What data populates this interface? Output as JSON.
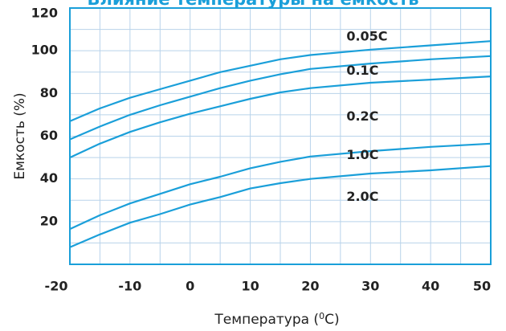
{
  "chart_data": {
    "type": "line",
    "title": "Влияние температуры на емкость",
    "xlabel": "Температура (",
    "xlabel_sup": "0",
    "xlabel_end": "C)",
    "ylabel": "Емкость (%)",
    "xlim": [
      -20,
      50
    ],
    "ylim": [
      0,
      120
    ],
    "x_ticks": [
      -20,
      -10,
      0,
      10,
      20,
      30,
      40,
      50
    ],
    "x_tick_labels": [
      "-20",
      "-10",
      "0",
      "10",
      "20",
      "30",
      "40",
      "50"
    ],
    "y_ticks": [
      20,
      40,
      60,
      80,
      100,
      120
    ],
    "y_tick_labels": [
      "20",
      "40",
      "60",
      "80",
      "100",
      "120"
    ],
    "grid": true,
    "line_color": "#1a9fd9",
    "grid_color": "#b8d3ea",
    "frame_color": "#1a9fd9",
    "series": [
      {
        "name": "0.05C",
        "x": [
          -20,
          -15,
          -10,
          -5,
          0,
          5,
          10,
          15,
          20,
          30,
          40,
          50
        ],
        "y": [
          67,
          73,
          78,
          82,
          86,
          90,
          93,
          96,
          98,
          100.5,
          102.5,
          104.5
        ],
        "label_x": 26,
        "label_y": 106.5
      },
      {
        "name": "0.1C",
        "x": [
          -20,
          -15,
          -10,
          -5,
          0,
          5,
          10,
          15,
          20,
          30,
          40,
          50
        ],
        "y": [
          58.5,
          64.5,
          70,
          74.5,
          78.5,
          82.5,
          86,
          89,
          91.5,
          94,
          96,
          97.5
        ],
        "label_x": 26,
        "label_y": 90.5
      },
      {
        "name": "0.2C",
        "x": [
          -20,
          -15,
          -10,
          -5,
          0,
          5,
          10,
          15,
          20,
          30,
          40,
          50
        ],
        "y": [
          50,
          56.5,
          62,
          66.5,
          70.5,
          74,
          77.5,
          80.5,
          82.5,
          85,
          86.5,
          88
        ],
        "label_x": 26,
        "label_y": 69
      },
      {
        "name": "1.0C",
        "x": [
          -20,
          -15,
          -10,
          -5,
          0,
          5,
          10,
          15,
          20,
          30,
          40,
          50
        ],
        "y": [
          16.5,
          23,
          28.5,
          33,
          37.5,
          41,
          45,
          48,
          50.5,
          53,
          55,
          56.5
        ],
        "label_x": 26,
        "label_y": 51
      },
      {
        "name": "2.0C",
        "x": [
          -20,
          -15,
          -10,
          -5,
          0,
          5,
          10,
          15,
          20,
          30,
          40,
          50
        ],
        "y": [
          8,
          14,
          19.5,
          23.5,
          28,
          31.5,
          35.5,
          38,
          40,
          42.5,
          44,
          46
        ],
        "label_x": 26,
        "label_y": 31.5
      }
    ]
  }
}
